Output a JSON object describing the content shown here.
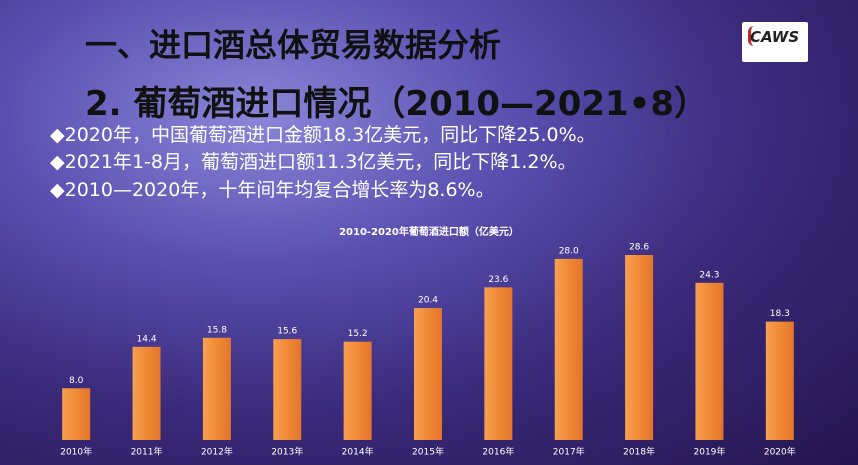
{
  "slide": {
    "heading": "一、进口酒总体贸易数据分析",
    "subheading": "2. 葡萄酒进口情况（2010—2021•8）",
    "bullets": [
      "◆2020年，中国葡萄酒进口金额18.3亿美元，同比下降25.0%。",
      "◆2021年1-8月，葡萄酒进口额11.3亿美元，同比下降1.2%。",
      "◆2010—2020年，十年间年均复合增长率为8.6%。"
    ],
    "logo": "CAWS"
  },
  "chart_data": {
    "type": "bar",
    "title": "2010-2020年葡萄酒进口额（亿美元）",
    "categories": [
      "2010年",
      "2011年",
      "2012年",
      "2013年",
      "2014年",
      "2015年",
      "2016年",
      "2017年",
      "2018年",
      "2019年",
      "2020年"
    ],
    "values": [
      8.0,
      14.4,
      15.8,
      15.6,
      15.2,
      20.4,
      23.6,
      28.0,
      28.6,
      24.3,
      18.3
    ],
    "value_labels": [
      "8.0",
      "14.4",
      "15.8",
      "15.6",
      "15.2",
      "20.4",
      "23.6",
      "28.0",
      "28.6",
      "24.3",
      "18.3"
    ],
    "color": "#f08a36"
  }
}
